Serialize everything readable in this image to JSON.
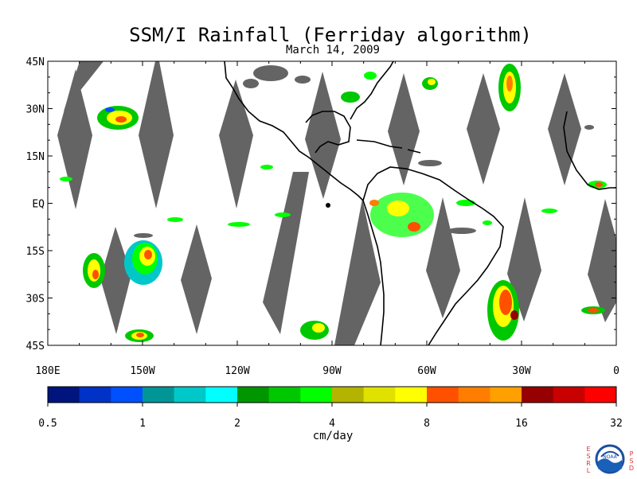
{
  "title": "SSM/I Rainfall (Ferriday algorithm)",
  "subtitle": "March 14, 2009",
  "map": {
    "lat_labels": [
      "45N",
      "30N",
      "15N",
      "EQ",
      "15S",
      "30S",
      "45S"
    ],
    "lat_values": [
      45,
      30,
      15,
      0,
      -15,
      -30,
      -45
    ],
    "lon_labels": [
      "180E",
      "150W",
      "120W",
      "90W",
      "60W",
      "30W",
      "0"
    ],
    "lon_values": [
      -180,
      -150,
      -120,
      -90,
      -60,
      -30,
      0
    ],
    "lon_range": [
      -180,
      0
    ],
    "lat_range": [
      -45,
      45
    ],
    "missing_swath_color": "#646464"
  },
  "colorbar": {
    "tick_labels": [
      "0.5",
      "1",
      "2",
      "4",
      "8",
      "16",
      "32"
    ],
    "unit_label": "cm/day",
    "colors": [
      "#00147d",
      "#0032c8",
      "#0050ff",
      "#009696",
      "#00c8c8",
      "#00ffff",
      "#009600",
      "#00c800",
      "#00ff00",
      "#b4b400",
      "#e1e100",
      "#ffff00",
      "#ff5000",
      "#ff7d00",
      "#ffa000",
      "#960000",
      "#c80000",
      "#ff0000"
    ]
  },
  "logo": {
    "center_text": "NOAA",
    "left_letters": [
      "E",
      "S",
      "R",
      "L"
    ],
    "right_letters": [
      "P",
      "S",
      "D"
    ]
  }
}
